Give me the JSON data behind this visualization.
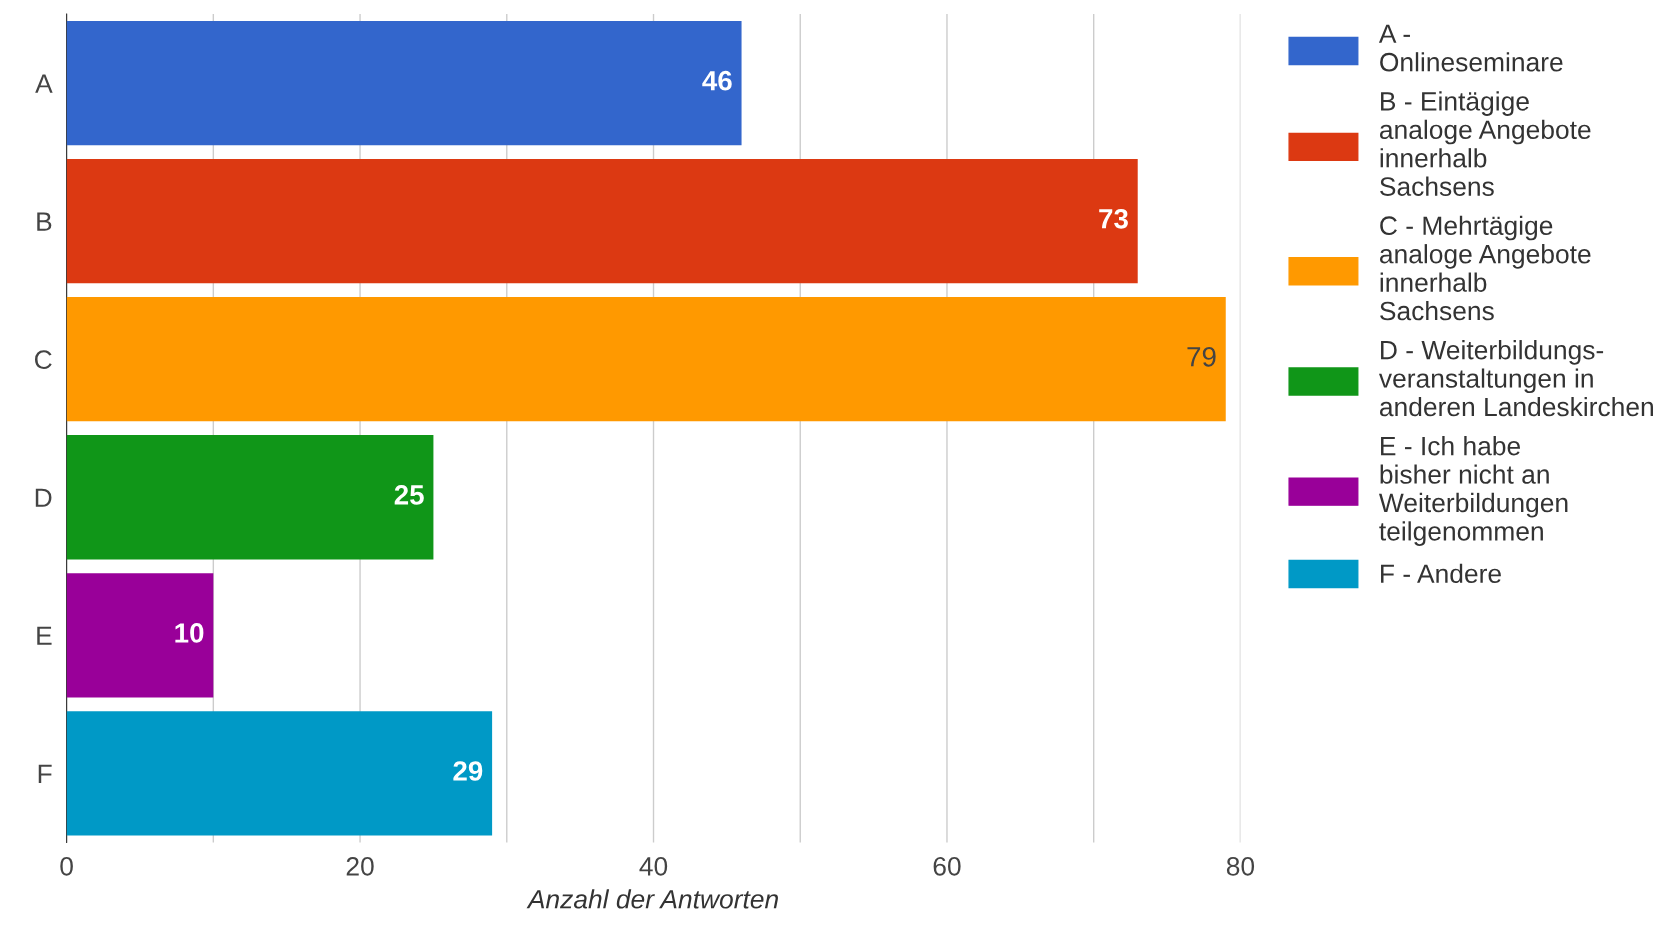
{
  "chart_data": {
    "type": "bar",
    "orientation": "horizontal",
    "xlabel": "Anzahl der Antworten",
    "categories": [
      "A",
      "B",
      "C",
      "D",
      "E",
      "F"
    ],
    "series": [
      {
        "name": "A -\nOnlineseminare",
        "color": "#3366cc",
        "values": [
          46,
          null,
          null,
          null,
          null,
          null
        ]
      },
      {
        "name": "B - Eintägige\nanaloge Angebote\ninnerhalb\nSachsens",
        "color": "#dc3912",
        "values": [
          null,
          73,
          null,
          null,
          null,
          null
        ]
      },
      {
        "name": "C - Mehrtägige\nanaloge Angebote\ninnerhalb\nSachsens",
        "color": "#ff9900",
        "values": [
          null,
          null,
          79,
          null,
          null,
          null
        ]
      },
      {
        "name": "D - Weiterbildungs-\nveranstaltungen in\nanderen Landeskirchen",
        "color": "#109618",
        "values": [
          null,
          null,
          null,
          25,
          null,
          null
        ]
      },
      {
        "name": "E - Ich habe\nbisher nicht an\nWeiterbildungen\nteilgenommen",
        "color": "#990099",
        "values": [
          null,
          null,
          null,
          null,
          10,
          null
        ]
      },
      {
        "name": "F - Andere",
        "color": "#0099c6",
        "values": [
          null,
          null,
          null,
          null,
          null,
          29
        ]
      }
    ],
    "xlim": [
      0,
      80
    ],
    "xticks": [
      0,
      {
        "value": 10,
        "label": null
      },
      20,
      {
        "value": 30,
        "label": null
      },
      40,
      {
        "value": 50,
        "label": null
      },
      60,
      {
        "value": 70,
        "label": null
      },
      80
    ],
    "grid": "x",
    "legend": "right",
    "data_labels": true
  }
}
